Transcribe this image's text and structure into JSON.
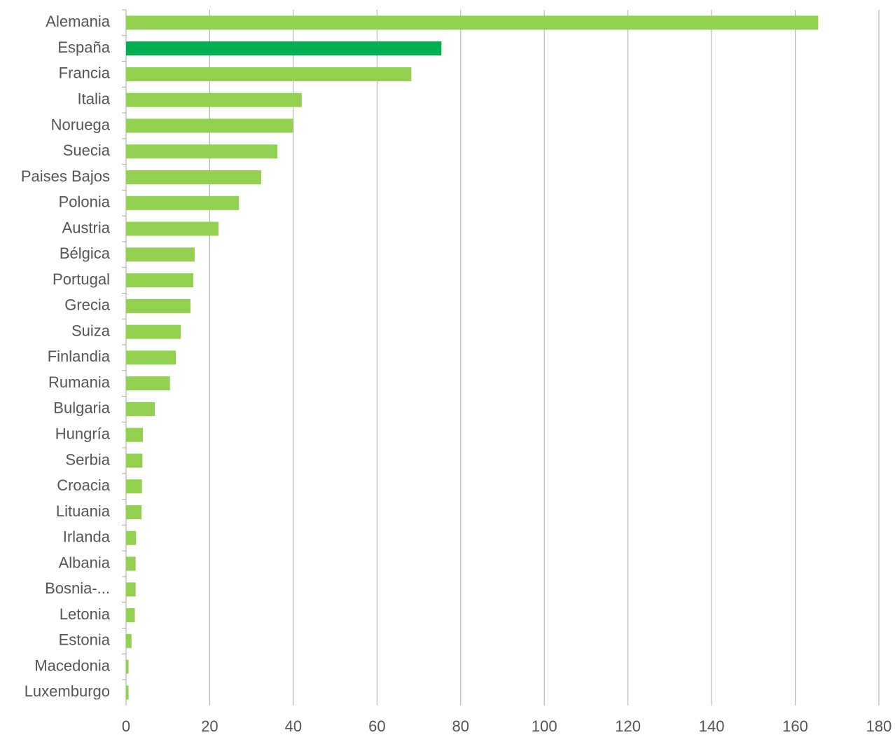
{
  "chart_data": {
    "type": "bar",
    "orientation": "horizontal",
    "categories": [
      "Alemania",
      "España",
      "Francia",
      "Italia",
      "Noruega",
      "Suecia",
      "Paises Bajos",
      "Polonia",
      "Austria",
      "Bélgica",
      "Portugal",
      "Grecia",
      "Suiza",
      "Finlandia",
      "Rumania",
      "Bulgaria",
      "Hungría",
      "Serbia",
      "Croacia",
      "Lituania",
      "Irlanda",
      "Albania",
      "Bosnia-...",
      "Letonia",
      "Estonia",
      "Macedonia",
      "Luxemburgo"
    ],
    "values": [
      165.5,
      75.4,
      68.2,
      42,
      39.9,
      36.2,
      32.3,
      27,
      22.1,
      16.4,
      16.1,
      15.4,
      13.1,
      11.9,
      10.5,
      6.9,
      4,
      3.9,
      3.8,
      3.7,
      2.4,
      2.3,
      2.3,
      2.1,
      1.3,
      0.6,
      0.6
    ],
    "colors": [
      "#92d050",
      "#00b050",
      "#92d050",
      "#92d050",
      "#92d050",
      "#92d050",
      "#92d050",
      "#92d050",
      "#92d050",
      "#92d050",
      "#92d050",
      "#92d050",
      "#92d050",
      "#92d050",
      "#92d050",
      "#92d050",
      "#92d050",
      "#92d050",
      "#92d050",
      "#92d050",
      "#92d050",
      "#92d050",
      "#92d050",
      "#92d050",
      "#92d050",
      "#92d050",
      "#92d050"
    ],
    "xlim": [
      0,
      180
    ],
    "xticks": [
      0,
      20,
      40,
      60,
      80,
      100,
      120,
      140,
      160,
      180
    ],
    "grid": true
  }
}
